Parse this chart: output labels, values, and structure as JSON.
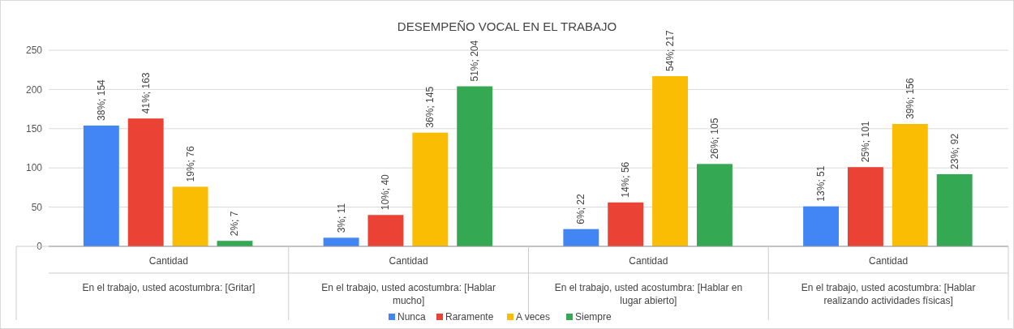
{
  "chart_data": {
    "type": "bar",
    "title": "DESEMPEÑO VOCAL EN EL TRABAJO",
    "categories": [
      "En el trabajo, usted acostumbra: [Gritar]",
      "En el trabajo, usted acostumbra: [Hablar mucho]",
      "En el trabajo, usted acostumbra: [Hablar en lugar abierto]",
      "En el trabajo, usted acostumbra: [Hablar realizando actividades físicas]"
    ],
    "series": [
      {
        "name": "Nunca",
        "color": "#4285f4",
        "values": [
          154,
          11,
          22,
          51
        ],
        "value_labels": [
          "38%; 154",
          "3%; 11",
          "6%; 22",
          "13%; 51"
        ]
      },
      {
        "name": "Raramente",
        "color": "#ea4335",
        "values": [
          163,
          40,
          56,
          101
        ],
        "value_labels": [
          "41%; 163",
          "10%; 40",
          "14%; 56",
          "25%; 101"
        ]
      },
      {
        "name": "A veces",
        "color": "#fbbc04",
        "values": [
          76,
          145,
          217,
          156
        ],
        "value_labels": [
          "19%; 76",
          "36%; 145",
          "54%; 217",
          "39%; 156"
        ]
      },
      {
        "name": "Siempre",
        "color": "#34a853",
        "values": [
          7,
          204,
          105,
          92
        ],
        "value_labels": [
          "2%; 7",
          "51%; 204",
          "26%; 105",
          "23%; 92"
        ]
      }
    ],
    "annotations": [
      "Cantidad",
      "Cantidad",
      "Cantidad",
      "Cantidad"
    ],
    "ylim": [
      0,
      250
    ],
    "yticks": [
      0,
      50,
      100,
      150,
      200,
      250
    ],
    "grid": "y",
    "legend": "bottom"
  }
}
